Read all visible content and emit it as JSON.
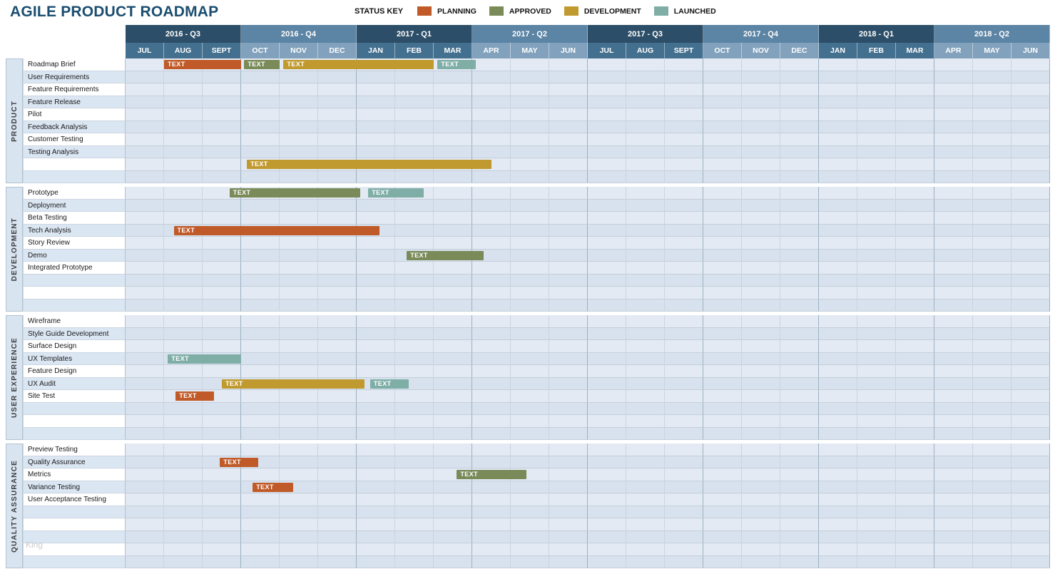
{
  "title": "AGILE PRODUCT ROADMAP",
  "status_key": {
    "label": "STATUS KEY",
    "items": [
      {
        "label": "PLANNING",
        "color": "#C05A28"
      },
      {
        "label": "APPROVED",
        "color": "#7A8A59"
      },
      {
        "label": "DEVELOPMENT",
        "color": "#C19A2F"
      },
      {
        "label": "LAUNCHED",
        "color": "#7FAEA7"
      }
    ]
  },
  "status_colors": {
    "planning": "#C05A28",
    "approved": "#7A8A59",
    "development": "#C19A2F",
    "launched": "#7FAEA7"
  },
  "timeline": {
    "quarters": [
      {
        "label": "2016 - Q3",
        "shade": "dark",
        "months": [
          "JUL",
          "AUG",
          "SEPT"
        ]
      },
      {
        "label": "2016 - Q4",
        "shade": "light",
        "months": [
          "OCT",
          "NOV",
          "DEC"
        ]
      },
      {
        "label": "2017 - Q1",
        "shade": "dark",
        "months": [
          "JAN",
          "FEB",
          "MAR"
        ]
      },
      {
        "label": "2017 - Q2",
        "shade": "light",
        "months": [
          "APR",
          "MAY",
          "JUN"
        ]
      },
      {
        "label": "2017 - Q3",
        "shade": "dark",
        "months": [
          "JUL",
          "AUG",
          "SEPT"
        ]
      },
      {
        "label": "2017 - Q4",
        "shade": "light",
        "months": [
          "OCT",
          "NOV",
          "DEC"
        ]
      },
      {
        "label": "2018 - Q1",
        "shade": "dark",
        "months": [
          "JAN",
          "FEB",
          "MAR"
        ]
      },
      {
        "label": "2018 - Q2",
        "shade": "light",
        "months": [
          "APR",
          "MAY",
          "JUN"
        ]
      }
    ]
  },
  "groups": [
    {
      "name": "PRODUCT",
      "rows": [
        "Roadmap Brief",
        "User Requirements",
        "Feature Requirements",
        "Feature Release",
        "Pilot",
        "Feedback Analysis",
        "Customer Testing",
        "Testing Analysis",
        "",
        ""
      ]
    },
    {
      "name": "DEVELOPMENT",
      "rows": [
        "Prototype",
        "Deployment",
        "Beta Testing",
        "Tech Analysis",
        "Story Review",
        "Demo",
        "Integrated Prototype",
        "",
        "",
        ""
      ]
    },
    {
      "name": "USER EXPERIENCE",
      "rows": [
        "Wireframe",
        "Style Guide Development",
        "Surface Design",
        "UX Templates",
        "Feature Design",
        "UX Audit",
        "Site Test",
        "",
        "",
        ""
      ]
    },
    {
      "name": "QUALITY ASSURANCE",
      "rows": [
        "Preview Testing",
        "Quality Assurance",
        "Metrics",
        "Variance Testing",
        "User Acceptance Testing",
        "",
        "",
        "",
        "",
        ""
      ]
    }
  ],
  "chart_data": {
    "type": "gantt",
    "x_unit": "months since JUL 2016",
    "x_range": [
      "JUL 2016",
      "JUN 2018"
    ],
    "bars": [
      {
        "group": 0,
        "row": 0,
        "status": "planning",
        "start_month": 1.0,
        "end_month": 3.0,
        "label": "TEXT"
      },
      {
        "group": 0,
        "row": 0,
        "status": "approved",
        "start_month": 3.08,
        "end_month": 4.0,
        "label": "TEXT"
      },
      {
        "group": 0,
        "row": 0,
        "status": "development",
        "start_month": 4.1,
        "end_month": 8.0,
        "label": "TEXT"
      },
      {
        "group": 0,
        "row": 0,
        "status": "launched",
        "start_month": 8.1,
        "end_month": 9.1,
        "label": "TEXT"
      },
      {
        "group": 0,
        "row": 8,
        "status": "development",
        "start_month": 3.15,
        "end_month": 9.5,
        "label": "TEXT"
      },
      {
        "group": 1,
        "row": 0,
        "status": "approved",
        "start_month": 2.7,
        "end_month": 6.1,
        "label": "TEXT"
      },
      {
        "group": 1,
        "row": 0,
        "status": "launched",
        "start_month": 6.3,
        "end_month": 7.75,
        "label": "TEXT"
      },
      {
        "group": 1,
        "row": 3,
        "status": "planning",
        "start_month": 1.25,
        "end_month": 6.6,
        "label": "TEXT"
      },
      {
        "group": 1,
        "row": 5,
        "status": "approved",
        "start_month": 7.3,
        "end_month": 9.3,
        "label": "TEXT"
      },
      {
        "group": 2,
        "row": 3,
        "status": "launched",
        "start_month": 1.1,
        "end_month": 3.0,
        "label": "TEXT"
      },
      {
        "group": 2,
        "row": 5,
        "status": "development",
        "start_month": 2.5,
        "end_month": 6.2,
        "label": "TEXT"
      },
      {
        "group": 2,
        "row": 5,
        "status": "launched",
        "start_month": 6.35,
        "end_month": 7.35,
        "label": "TEXT"
      },
      {
        "group": 2,
        "row": 6,
        "status": "planning",
        "start_month": 1.3,
        "end_month": 2.3,
        "label": "TEXT"
      },
      {
        "group": 3,
        "row": 1,
        "status": "planning",
        "start_month": 2.45,
        "end_month": 3.45,
        "label": "TEXT"
      },
      {
        "group": 3,
        "row": 2,
        "status": "approved",
        "start_month": 8.6,
        "end_month": 10.4,
        "label": "TEXT"
      },
      {
        "group": 3,
        "row": 3,
        "status": "planning",
        "start_month": 3.3,
        "end_month": 4.35,
        "label": "TEXT"
      }
    ]
  },
  "watermark": "King"
}
